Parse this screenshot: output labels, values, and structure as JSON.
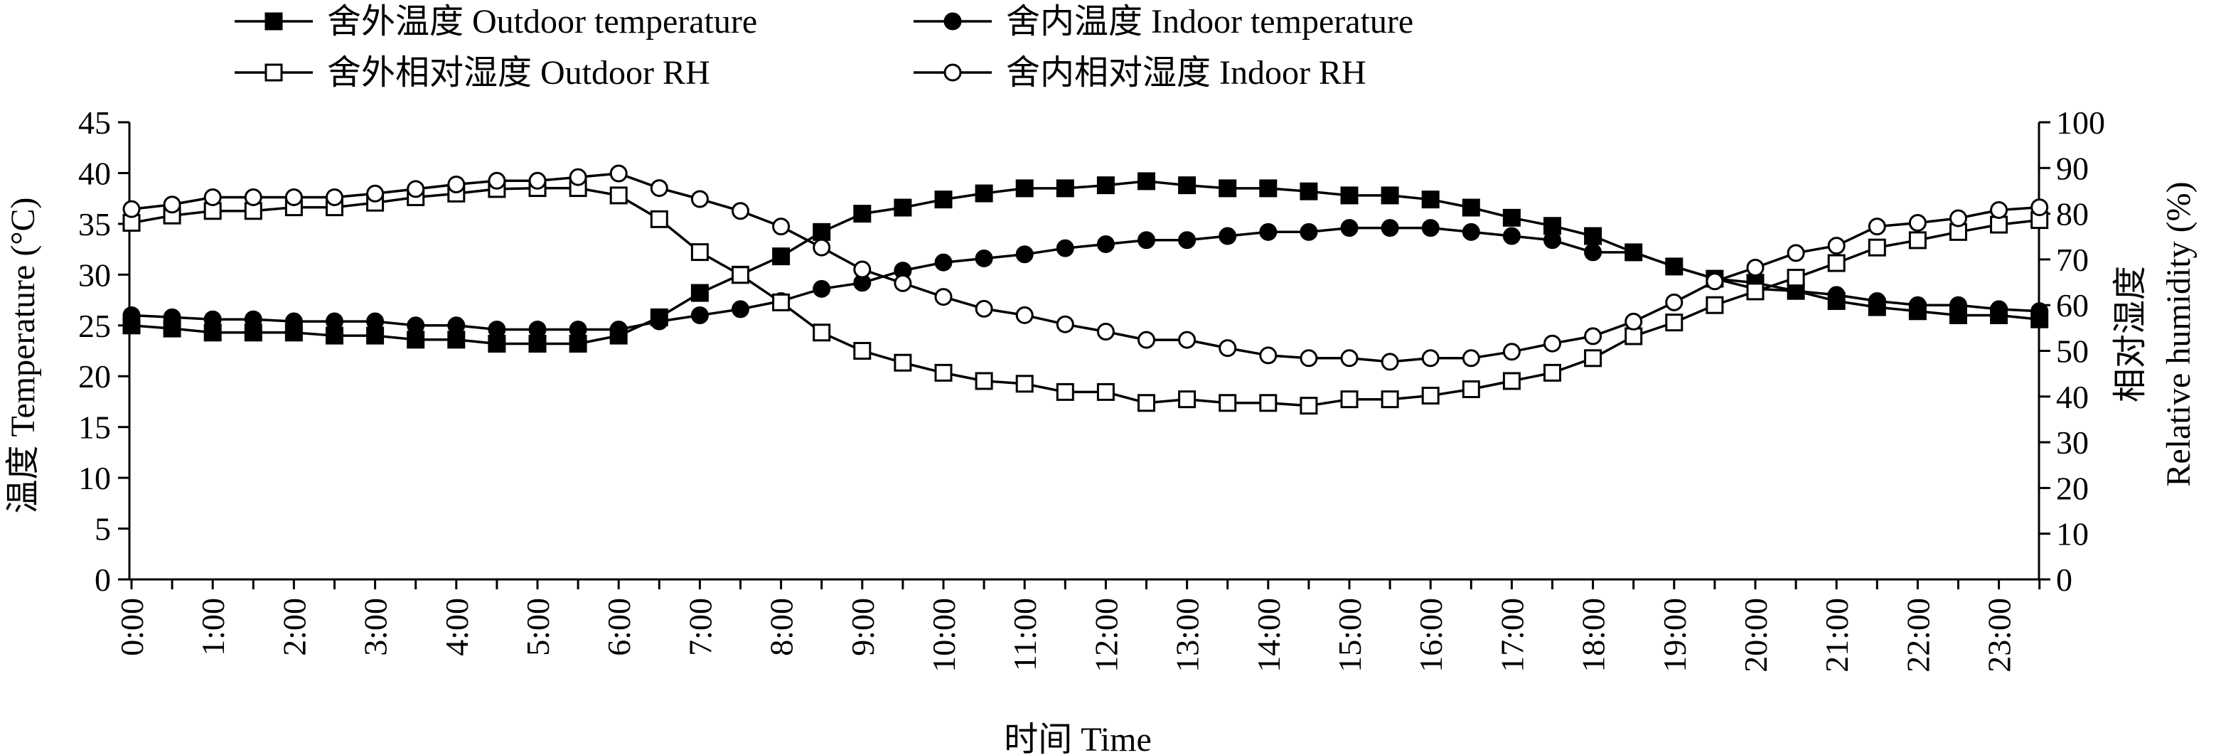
{
  "chart_data": {
    "type": "line",
    "xlabel": "时间 Time",
    "ylabel_left": "温度 Temperature (°C)",
    "ylabel_right_cn": "相对湿度",
    "ylabel_right_en": "Relative humidity (%)",
    "ylim_left": [
      0,
      45
    ],
    "ylim_right": [
      0,
      100
    ],
    "yticks_left": [
      0,
      5,
      10,
      15,
      20,
      25,
      30,
      35,
      40,
      45
    ],
    "yticks_right": [
      0,
      10,
      20,
      30,
      40,
      50,
      60,
      70,
      80,
      90,
      100
    ],
    "xticks": [
      "0:00",
      "1:00",
      "2:00",
      "3:00",
      "4:00",
      "5:00",
      "6:00",
      "7:00",
      "8:00",
      "9:00",
      "10:00",
      "11:00",
      "12:00",
      "13:00",
      "14:00",
      "15:00",
      "16:00",
      "17:00",
      "18:00",
      "19:00",
      "20:00",
      "21:00",
      "22:00",
      "23:00"
    ],
    "x_hours": [
      0,
      0.5,
      1,
      1.5,
      2,
      2.5,
      3,
      3.5,
      4,
      4.5,
      5,
      5.5,
      6,
      6.5,
      7,
      7.5,
      8,
      8.5,
      9,
      9.5,
      10,
      10.5,
      11,
      11.5,
      12,
      12.5,
      13,
      13.5,
      14,
      14.5,
      15,
      15.5,
      16,
      16.5,
      17,
      17.5,
      18,
      18.5,
      19,
      19.5,
      20,
      20.5,
      21,
      21.5,
      22,
      22.5,
      23,
      23.5
    ],
    "series": [
      {
        "name": "舍外温度 Outdoor temperature",
        "axis": "left",
        "marker": "square-filled",
        "values": [
          25.0,
          24.7,
          24.3,
          24.3,
          24.3,
          24.0,
          24.0,
          23.6,
          23.6,
          23.2,
          23.2,
          23.2,
          24.0,
          25.8,
          28.2,
          30.0,
          31.8,
          34.2,
          36.0,
          36.6,
          37.4,
          38.0,
          38.5,
          38.5,
          38.8,
          39.2,
          38.8,
          38.5,
          38.5,
          38.2,
          37.8,
          37.8,
          37.4,
          36.6,
          35.6,
          34.8,
          33.8,
          32.2,
          30.8,
          29.6,
          29.2,
          28.4,
          27.4,
          26.8,
          26.4,
          26.0,
          26.0,
          25.6
        ]
      },
      {
        "name": "舍内温度 Indoor temperature",
        "axis": "left",
        "marker": "circle-filled",
        "values": [
          26.0,
          25.8,
          25.6,
          25.6,
          25.4,
          25.4,
          25.4,
          25.0,
          25.0,
          24.6,
          24.6,
          24.6,
          24.6,
          25.4,
          26.0,
          26.6,
          27.4,
          28.6,
          29.2,
          30.4,
          31.2,
          31.6,
          32.0,
          32.6,
          33.0,
          33.4,
          33.4,
          33.8,
          34.2,
          34.2,
          34.6,
          34.6,
          34.6,
          34.2,
          33.8,
          33.4,
          32.2,
          32.2,
          30.8,
          29.6,
          28.6,
          28.4,
          28.0,
          27.4,
          27.0,
          27.0,
          26.6,
          26.4
        ]
      },
      {
        "name": "舍外相对湿度 Outdoor RH",
        "axis": "right",
        "marker": "square-open",
        "values": [
          78.0,
          79.6,
          80.6,
          80.6,
          81.4,
          81.4,
          82.4,
          83.6,
          84.4,
          85.4,
          85.6,
          85.6,
          84.0,
          78.8,
          71.6,
          66.6,
          60.6,
          54.0,
          50.0,
          47.4,
          45.2,
          43.4,
          42.8,
          41.0,
          41.0,
          38.6,
          39.4,
          38.6,
          38.6,
          38.0,
          39.4,
          39.4,
          40.2,
          41.6,
          43.4,
          45.2,
          48.4,
          53.2,
          56.2,
          60.0,
          63.0,
          66.0,
          69.2,
          72.6,
          74.2,
          76.0,
          77.6,
          78.6
        ]
      },
      {
        "name": "舍内相对湿度 Indoor RH",
        "axis": "right",
        "marker": "circle-open",
        "values": [
          81.0,
          82.0,
          83.6,
          83.6,
          83.6,
          83.6,
          84.4,
          85.4,
          86.4,
          87.2,
          87.2,
          88.0,
          88.8,
          85.6,
          83.2,
          80.6,
          77.2,
          72.6,
          67.8,
          64.8,
          61.8,
          59.2,
          57.8,
          55.8,
          54.2,
          52.4,
          52.4,
          50.6,
          49.0,
          48.4,
          48.4,
          47.6,
          48.4,
          48.4,
          49.8,
          51.6,
          53.2,
          56.4,
          60.6,
          65.2,
          68.2,
          71.4,
          73.0,
          77.2,
          78.0,
          79.0,
          80.8,
          81.4
        ]
      }
    ],
    "legend": {
      "items": [
        "舍外温度 Outdoor temperature",
        "舍内温度 Indoor temperature",
        "舍外相对湿度 Outdoor RH",
        "舍内相对湿度 Indoor RH"
      ],
      "placement": "top-left"
    },
    "grid": false
  }
}
